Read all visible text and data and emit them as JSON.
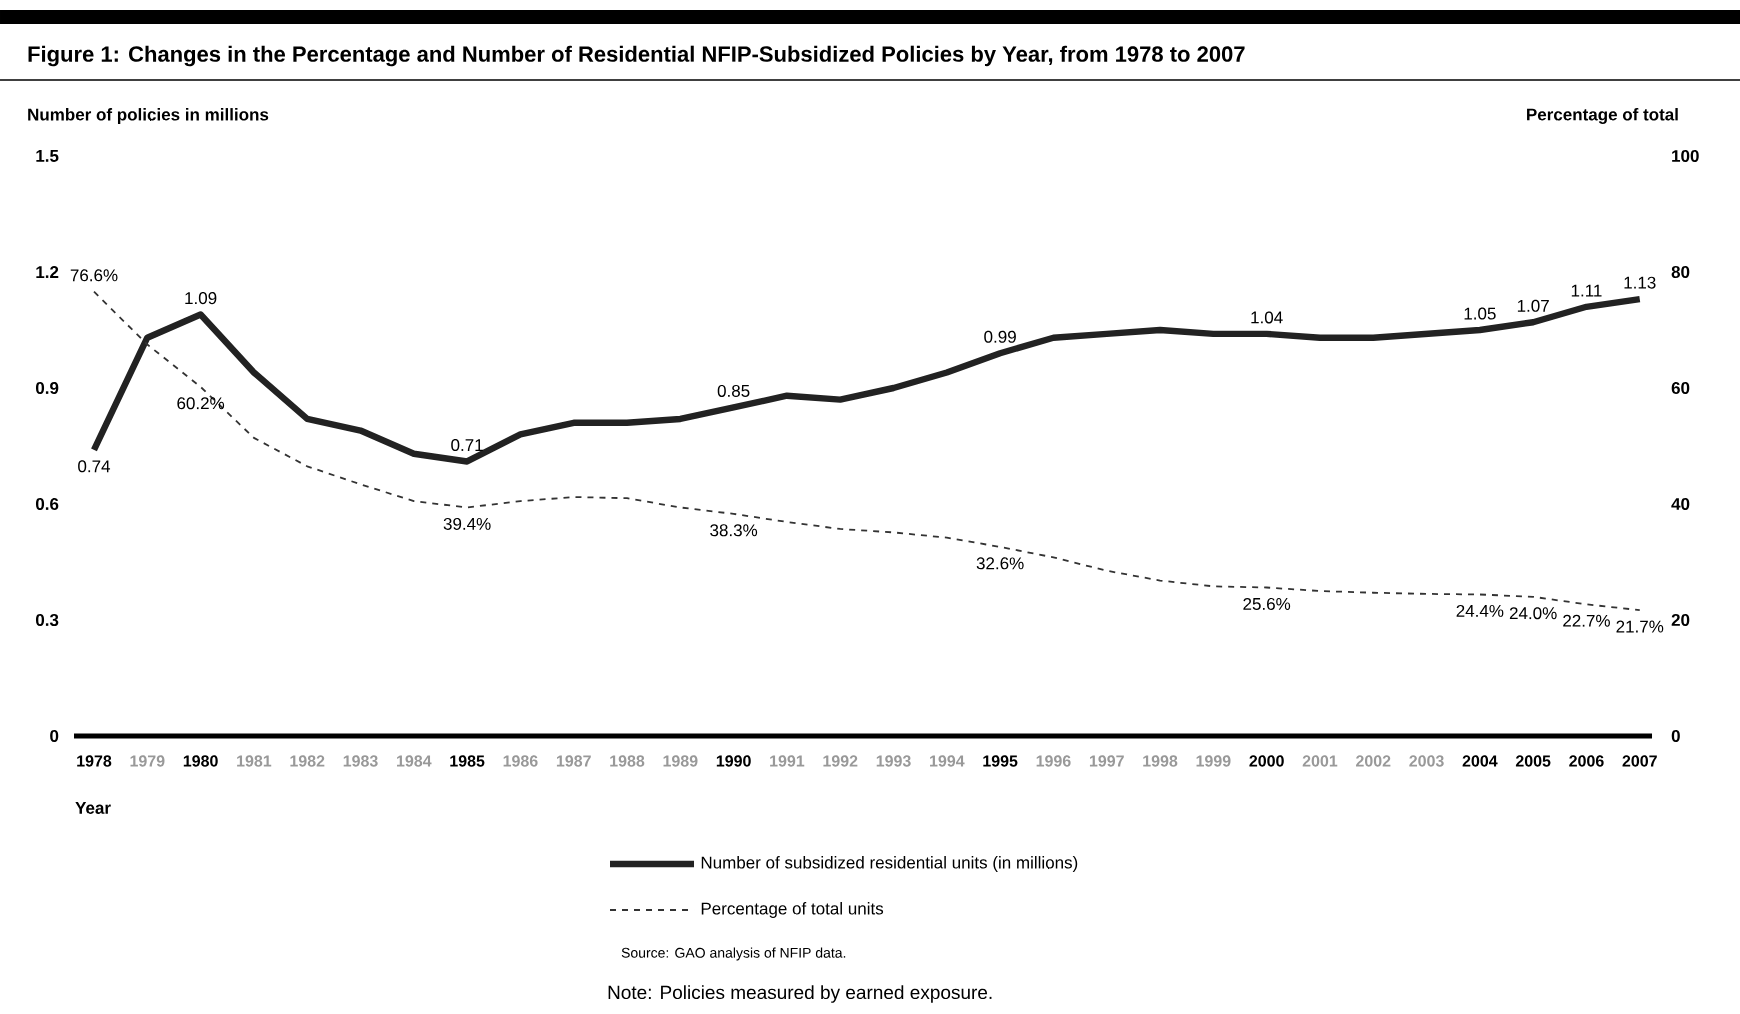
{
  "chart_data": {
    "type": "line",
    "title": "Figure 1: Changes in the Percentage and Number of Residential NFIP-Subsidized Policies by Year, from 1978 to 2007",
    "xlabel": "Year",
    "ylabel": "Number of policies in millions",
    "y2label": "Percentage of total",
    "categories": [
      "1978",
      "1979",
      "1980",
      "1981",
      "1982",
      "1983",
      "1984",
      "1985",
      "1986",
      "1987",
      "1988",
      "1989",
      "1990",
      "1991",
      "1992",
      "1993",
      "1994",
      "1995",
      "1996",
      "1997",
      "1998",
      "1999",
      "2000",
      "2001",
      "2002",
      "2003",
      "2004",
      "2005",
      "2006",
      "2007"
    ],
    "series": [
      {
        "name": "Number of subsidized residential units (in millions)",
        "color": "#222222",
        "line_style": "solid",
        "values": [
          0.74,
          1.03,
          1.09,
          0.94,
          0.82,
          0.79,
          0.73,
          0.71,
          0.78,
          0.81,
          0.81,
          0.82,
          0.85,
          0.88,
          0.87,
          0.9,
          0.94,
          0.99,
          1.03,
          1.04,
          1.05,
          1.04,
          1.04,
          1.03,
          1.03,
          1.04,
          1.05,
          1.07,
          1.11,
          1.13
        ],
        "value_labels": [
          "0.74",
          null,
          "1.09",
          null,
          null,
          null,
          null,
          "0.71",
          null,
          null,
          null,
          null,
          "0.85",
          null,
          null,
          null,
          null,
          "0.99",
          null,
          null,
          null,
          null,
          "1.04",
          null,
          null,
          null,
          "1.05",
          "1.07",
          "1.11",
          "1.13"
        ]
      },
      {
        "name": "Percentage of total units",
        "color": "#333333",
        "line_style": "dashed",
        "axis": "y2",
        "values": [
          76.6,
          67.5,
          60.2,
          51.4,
          46.5,
          43.4,
          40.5,
          39.4,
          40.5,
          41.2,
          41.0,
          39.4,
          38.3,
          36.9,
          35.7,
          35.1,
          34.2,
          32.6,
          30.8,
          28.5,
          26.8,
          25.8,
          25.6,
          25.0,
          24.7,
          24.5,
          24.4,
          24.0,
          22.7,
          21.7
        ],
        "value_labels": [
          "76.6%",
          null,
          "60.2%",
          null,
          null,
          null,
          null,
          "39.4%",
          null,
          null,
          null,
          null,
          "38.3%",
          null,
          null,
          null,
          null,
          "32.6%",
          null,
          null,
          null,
          null,
          "25.6%",
          null,
          null,
          null,
          "24.4%",
          "24.0%",
          "22.7%",
          "21.7%"
        ]
      }
    ],
    "ylim": [
      0,
      1.5
    ],
    "yticks": [
      0,
      0.3,
      0.6,
      0.9,
      1.2,
      1.5
    ],
    "y2lim": [
      0,
      100
    ],
    "y2ticks": [
      0,
      20,
      40,
      60,
      80,
      100
    ],
    "legend": "bottom",
    "marker": "none",
    "annotations": [
      "Source: GAO analysis of NFIP data.",
      "Note: Policies measured by earned exposure."
    ]
  }
}
